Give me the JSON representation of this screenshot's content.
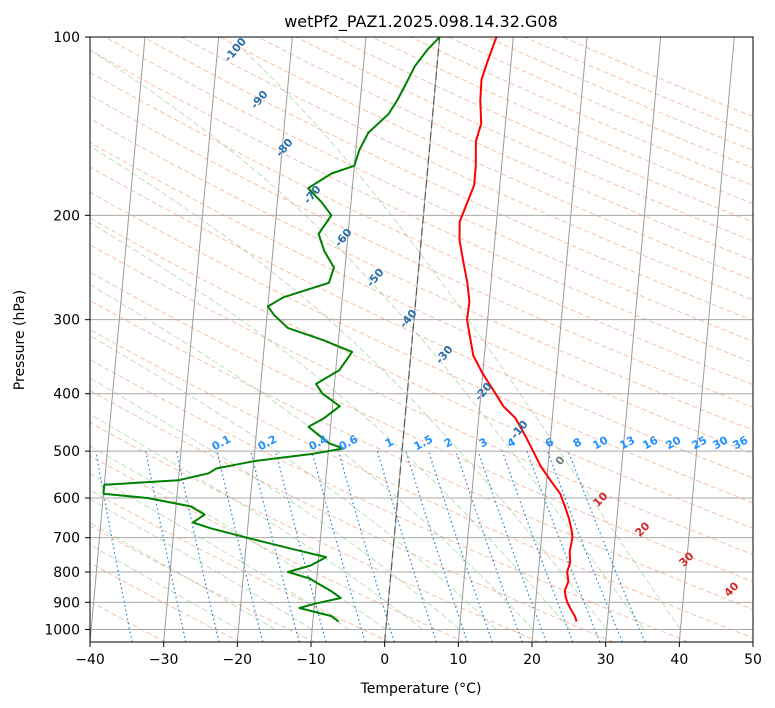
{
  "chart_data": {
    "type": "line",
    "title": "wetPf2_PAZ1.2025.098.14.32.G08",
    "xlabel": "Temperature (°C)",
    "ylabel": "Pressure (hPa)",
    "xlim": [
      -40,
      50
    ],
    "ylim": [
      1050,
      100
    ],
    "y_scale": "log",
    "grid": true,
    "x_ticks": [
      -40,
      -30,
      -20,
      -10,
      0,
      10,
      20,
      30,
      40,
      50
    ],
    "x_tick_labels": [
      "−40",
      "−30",
      "−20",
      "−10",
      "0",
      "10",
      "20",
      "30",
      "40",
      "50"
    ],
    "y_ticks": [
      100,
      200,
      300,
      400,
      500,
      600,
      700,
      800,
      900,
      1000
    ],
    "y_tick_labels": [
      "100",
      "200",
      "300",
      "400",
      "500",
      "600",
      "700",
      "800",
      "900",
      "1000"
    ],
    "series": [
      {
        "color": "#ff0000",
        "points": [
          [
            25.8,
            970
          ],
          [
            25.5,
            950
          ],
          [
            25,
            930
          ],
          [
            24.3,
            900
          ],
          [
            24,
            880
          ],
          [
            23.8,
            860
          ],
          [
            24.2,
            830
          ],
          [
            23.9,
            800
          ],
          [
            24.2,
            770
          ],
          [
            24,
            740
          ],
          [
            24.2,
            700
          ],
          [
            24,
            680
          ],
          [
            23.5,
            650
          ],
          [
            22.8,
            620
          ],
          [
            22,
            590
          ],
          [
            20.5,
            560
          ],
          [
            19,
            530
          ],
          [
            17.8,
            500
          ],
          [
            16.5,
            470
          ],
          [
            15,
            440
          ],
          [
            13.2,
            420
          ],
          [
            12,
            400
          ],
          [
            10,
            370
          ],
          [
            8.5,
            345
          ],
          [
            7.8,
            320
          ],
          [
            7.2,
            300
          ],
          [
            7.3,
            280
          ],
          [
            6.8,
            260
          ],
          [
            6,
            240
          ],
          [
            5.2,
            220
          ],
          [
            5,
            205
          ],
          [
            5.8,
            190
          ],
          [
            6.5,
            178
          ],
          [
            6.5,
            165
          ],
          [
            6.2,
            150
          ],
          [
            6.7,
            140
          ],
          [
            6.3,
            128
          ],
          [
            6.2,
            118
          ],
          [
            6.8,
            110
          ],
          [
            7.7,
            100
          ]
        ]
      },
      {
        "color": "#008000",
        "points": [
          [
            -6.5,
            970
          ],
          [
            -7.5,
            950
          ],
          [
            -9,
            940
          ],
          [
            -12,
            920
          ],
          [
            -10,
            905
          ],
          [
            -6.5,
            885
          ],
          [
            -8,
            860
          ],
          [
            -9.5,
            840
          ],
          [
            -11,
            820
          ],
          [
            -14,
            800
          ],
          [
            -11,
            780
          ],
          [
            -9,
            755
          ],
          [
            -13,
            735
          ],
          [
            -20,
            700
          ],
          [
            -25,
            675
          ],
          [
            -27.5,
            660
          ],
          [
            -26,
            640
          ],
          [
            -28,
            620
          ],
          [
            -34,
            600
          ],
          [
            -40,
            590
          ],
          [
            -40,
            570
          ],
          [
            -30,
            560
          ],
          [
            -26,
            545
          ],
          [
            -25,
            535
          ],
          [
            -20,
            520
          ],
          [
            -12,
            505
          ],
          [
            -8,
            495
          ],
          [
            -10,
            485
          ],
          [
            -11.5,
            470
          ],
          [
            -13,
            455
          ],
          [
            -11,
            440
          ],
          [
            -9,
            420
          ],
          [
            -11.5,
            400
          ],
          [
            -12.5,
            385
          ],
          [
            -9.5,
            365
          ],
          [
            -8,
            340
          ],
          [
            -12,
            325
          ],
          [
            -17,
            310
          ],
          [
            -19,
            295
          ],
          [
            -20,
            285
          ],
          [
            -18,
            275
          ],
          [
            -12,
            260
          ],
          [
            -11.5,
            245
          ],
          [
            -13,
            230
          ],
          [
            -14,
            215
          ],
          [
            -12.5,
            200
          ],
          [
            -14,
            190
          ],
          [
            -16,
            180
          ],
          [
            -13,
            170
          ],
          [
            -10,
            165
          ],
          [
            -9.5,
            155
          ],
          [
            -8.5,
            145
          ],
          [
            -6,
            135
          ],
          [
            -5,
            128
          ],
          [
            -4,
            120
          ],
          [
            -3,
            112
          ],
          [
            -1.5,
            105
          ],
          [
            0,
            100
          ]
        ]
      }
    ],
    "mixing_ratio_labels": [
      "0.1",
      "0.2",
      "0.4",
      "0.6",
      "1",
      "1.5",
      "2",
      "3",
      "4",
      "6",
      "8",
      "10",
      "13",
      "16",
      "20",
      "25",
      "30",
      "36"
    ],
    "moist_adiabat_labels": [
      "-100",
      "-90",
      "-80",
      "-70",
      "-60",
      "-50",
      "-40",
      "-30",
      "-20",
      "-10",
      "0"
    ],
    "dry_adiabat_labels": [
      "10",
      "20",
      "30",
      "40"
    ]
  }
}
